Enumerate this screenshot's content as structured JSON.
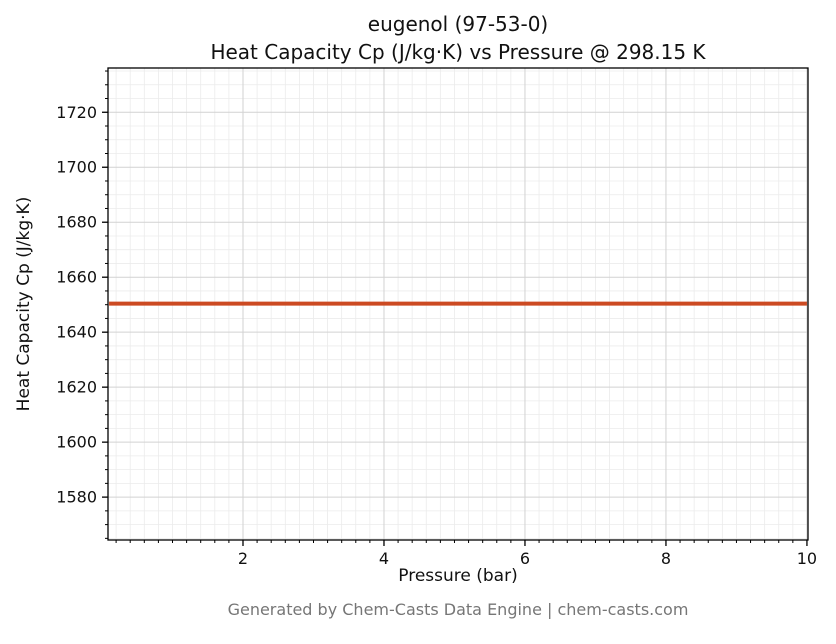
{
  "title_line1": "eugenol (97-53-0)",
  "title_line2": "Heat Capacity Cp (J/kg·K) vs Pressure @ 298.15 K",
  "footer": "Generated by Chem-Casts Data Engine | chem-casts.com",
  "chart_data": {
    "type": "line",
    "title": "eugenol (97-53-0) — Heat Capacity Cp (J/kg·K) vs Pressure @ 298.15 K",
    "xlabel": "Pressure (bar)",
    "ylabel": "Heat Capacity Cp (J/kg·K)",
    "series": [
      {
        "name": "Cp",
        "x": [
          0.1,
          10.0
        ],
        "y": [
          1650.4,
          1650.4
        ]
      }
    ],
    "cp_constant_value": 1650.4,
    "temperature_K": 298.15,
    "substance": "eugenol",
    "cas_number": "97-53-0",
    "xlim": [
      0.085,
      10.015
    ],
    "ylim": [
      1564.4,
      1736.1
    ],
    "xticks": [
      2,
      4,
      6,
      8,
      10
    ],
    "yticks": [
      1580,
      1600,
      1620,
      1640,
      1660,
      1680,
      1700,
      1720
    ],
    "x_minor_step": 0.2,
    "y_minor_step": 5,
    "grid": "both",
    "legend_position": "none",
    "line_color": "#cc4a22",
    "line_width": 4,
    "major_grid_color": "#d2d2d2",
    "minor_grid_color": "#ebebeb",
    "axis_color": "#000000"
  }
}
